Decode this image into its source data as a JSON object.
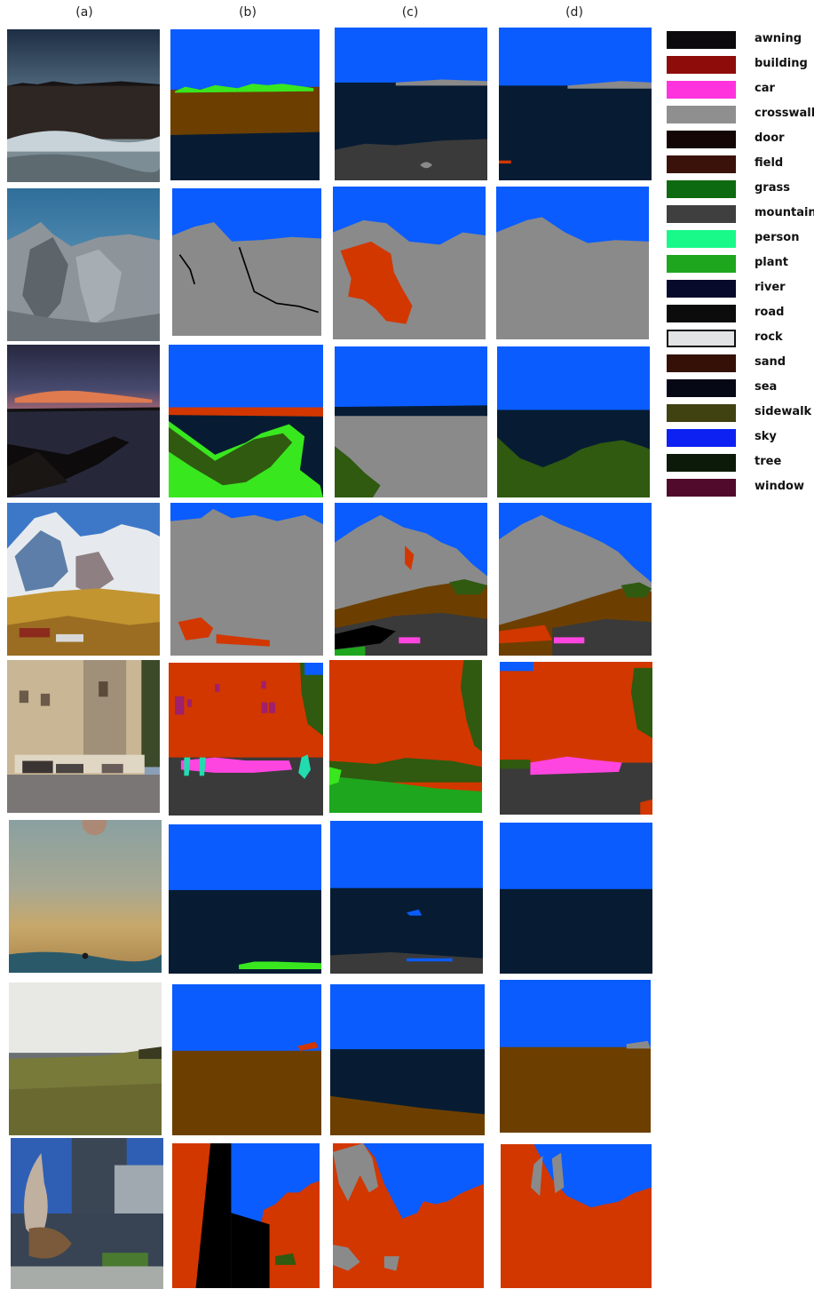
{
  "column_headers": [
    "(a)",
    "(b)",
    "(c)",
    "(d)"
  ],
  "legend": [
    {
      "label": "awning",
      "color": "#0c0a0c"
    },
    {
      "label": "building",
      "color": "#8e0d0b"
    },
    {
      "label": "car",
      "color": "#ff33dd"
    },
    {
      "label": "crosswalk",
      "color": "#8f8f8f"
    },
    {
      "label": "door",
      "color": "#140604"
    },
    {
      "label": "field",
      "color": "#3b1209"
    },
    {
      "label": "grass",
      "color": "#0e6a10"
    },
    {
      "label": "mountain",
      "color": "#3f3f3f"
    },
    {
      "label": "person",
      "color": "#18f98a"
    },
    {
      "label": "plant",
      "color": "#1ea71e"
    },
    {
      "label": "river",
      "color": "#080a2c"
    },
    {
      "label": "road",
      "color": "#0c0c0c"
    },
    {
      "label": "rock",
      "color": "#e1e3e4"
    },
    {
      "label": "sand",
      "color": "#341006"
    },
    {
      "label": "sea",
      "color": "#060816"
    },
    {
      "label": "sidewalk",
      "color": "#404212"
    },
    {
      "label": "sky",
      "color": "#0c21f2"
    },
    {
      "label": "tree",
      "color": "#0c1a0a"
    },
    {
      "label": "window",
      "color": "#510a2b"
    }
  ],
  "seg_colors": {
    "sky": "#0a5cff",
    "sea": "#071c33",
    "mountain": "#8a8a8a",
    "building": "#d23700",
    "field": "#6c3f00",
    "road": "#3a3a3a",
    "plant": "#39e71f",
    "tree": "#2f5a10",
    "car": "#ff45e0",
    "person": "#22dcb0",
    "black": "#000000"
  },
  "rows": 8
}
